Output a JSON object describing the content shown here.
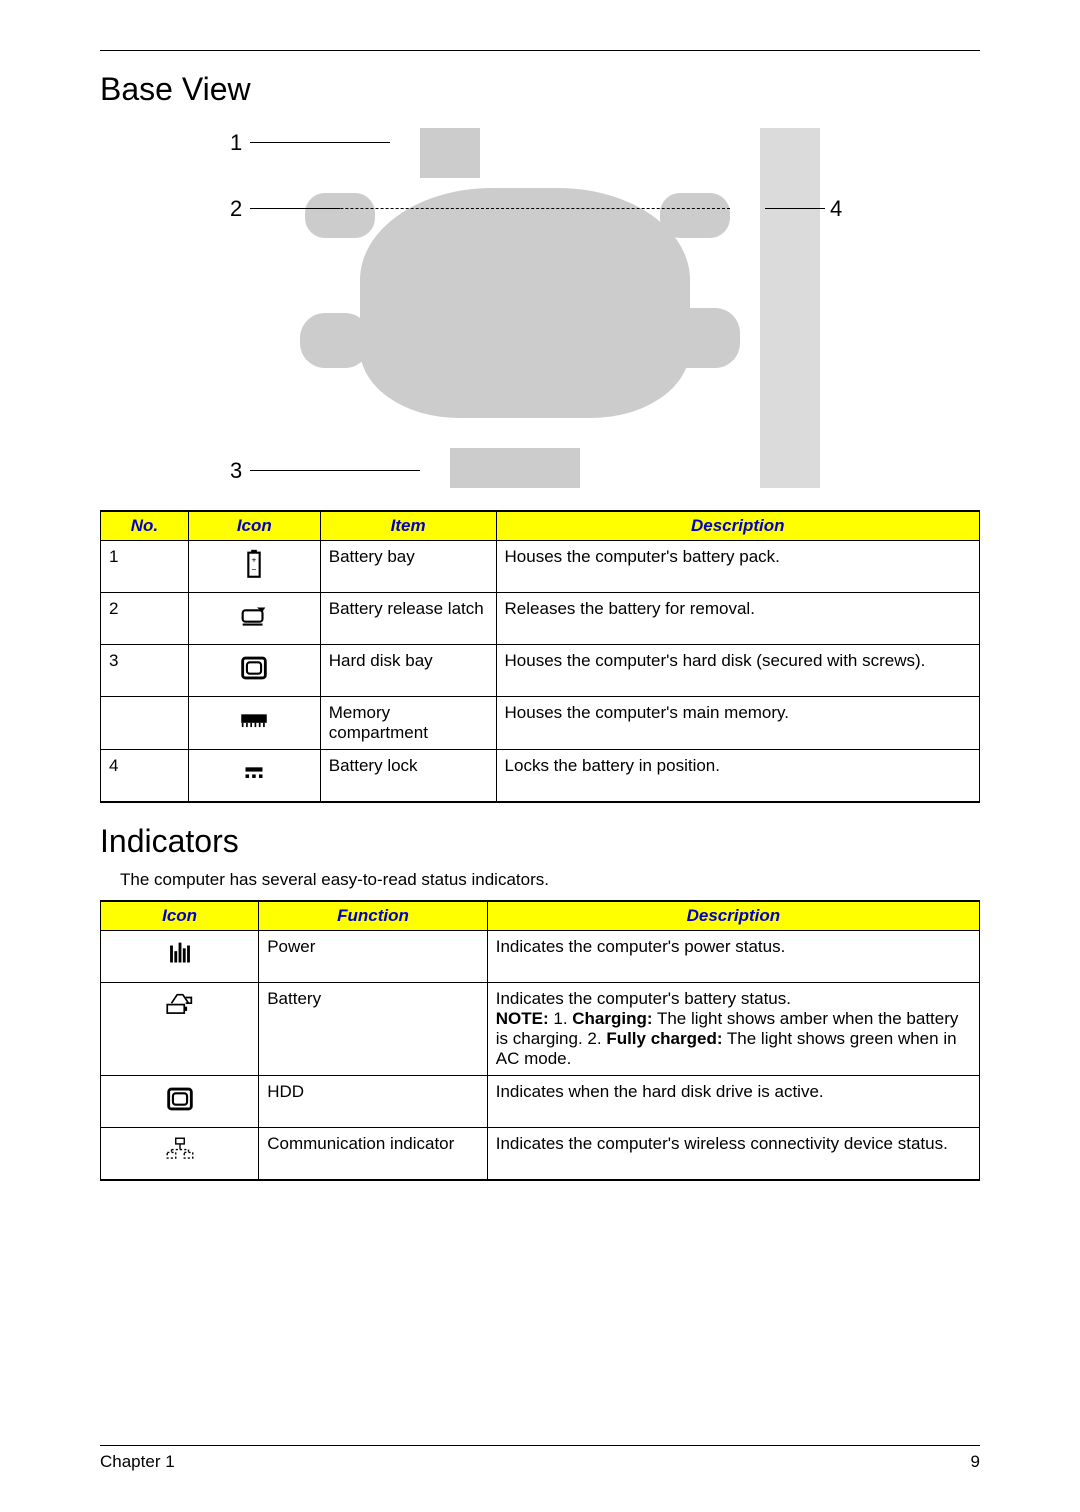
{
  "colors": {
    "header_bg": "#ffff00",
    "header_text": "#0000cc",
    "border": "#000000",
    "figure_fill": "#cccccc"
  },
  "page": {
    "chapter": "Chapter 1",
    "page_number": "9"
  },
  "section1": {
    "title": "Base View",
    "figure_labels": {
      "l1": "1",
      "l2": "2",
      "l3": "3",
      "l4": "4"
    },
    "headers": {
      "no": "No.",
      "icon": "Icon",
      "item": "Item",
      "desc": "Description"
    },
    "rows": [
      {
        "no": "1",
        "icon": "battery-bay-icon",
        "item": "Battery bay",
        "desc": "Houses the computer's battery pack."
      },
      {
        "no": "2",
        "icon": "battery-latch-icon",
        "item": "Battery release latch",
        "desc": "Releases the battery for removal."
      },
      {
        "no": "3",
        "icon": "hdd-bay-icon",
        "item": "Hard disk bay",
        "desc": "Houses the computer's hard disk (secured with screws)."
      },
      {
        "no": "",
        "icon": "memory-icon",
        "item": "Memory compartment",
        "desc": "Houses the computer's main memory."
      },
      {
        "no": "4",
        "icon": "battery-lock-icon",
        "item": "Battery lock",
        "desc": "Locks the battery in position."
      }
    ]
  },
  "section2": {
    "title": "Indicators",
    "intro": "The computer has several easy-to-read status indicators.",
    "headers": {
      "icon": "Icon",
      "func": "Function",
      "desc": "Description"
    },
    "rows": [
      {
        "icon": "power-icon",
        "func": "Power",
        "desc_html": "Indicates the computer's power status."
      },
      {
        "icon": "battery-ind-icon",
        "func": "Battery",
        "desc_html": "Indicates the computer's battery status.<br><b>NOTE:</b> 1. <b>Charging:</b> The light shows amber when the battery is charging. 2. <b>Fully charged:</b> The light shows green when in AC mode."
      },
      {
        "icon": "hdd-icon",
        "func": "HDD",
        "desc_html": "Indicates when the hard disk drive is active."
      },
      {
        "icon": "comm-icon",
        "func": "Communication indicator",
        "desc_html": "Indicates the computer's wireless connectivity device status."
      }
    ]
  }
}
